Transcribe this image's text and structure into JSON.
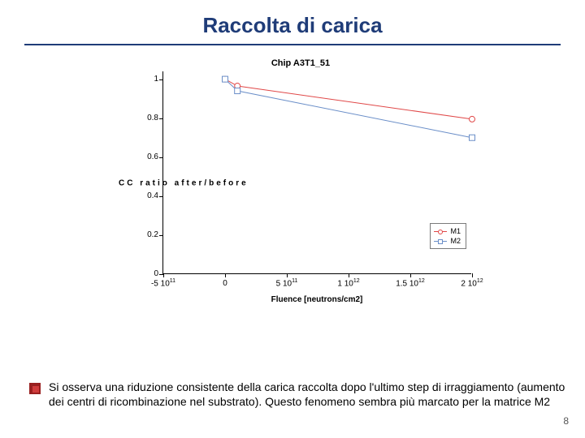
{
  "title": "Raccolta di carica",
  "chart": {
    "type": "line",
    "title": "Chip A3T1_51",
    "xlabel": "Fluence [neutrons/cm2]",
    "ylabel_display": "CC ratio after/before",
    "ylim": [
      0,
      1.04
    ],
    "yticks": [
      0,
      0.2,
      0.4,
      0.6,
      0.8,
      1
    ],
    "xlim": [
      -500000000000.0,
      2000000000000.0
    ],
    "xticks": [
      -500000000000.0,
      0,
      500000000000.0,
      1000000000000.0,
      1500000000000.0,
      2000000000000.0
    ],
    "xtick_labels": [
      "-5 10<sup>11</sup>",
      "0",
      "5 10<sup>11</sup>",
      "1 10<sup>12</sup>",
      "1.5 10<sup>12</sup>",
      "2 10<sup>12</sup>"
    ],
    "series": [
      {
        "name": "M1",
        "color": "#e04848",
        "marker": "circle",
        "data": [
          {
            "x": 0,
            "y": 1.0
          },
          {
            "x": 100000000000.0,
            "y": 0.965
          },
          {
            "x": 2000000000000.0,
            "y": 0.795
          }
        ]
      },
      {
        "name": "M2",
        "color": "#6a8ec8",
        "marker": "square",
        "data": [
          {
            "x": 0,
            "y": 1.0
          },
          {
            "x": 100000000000.0,
            "y": 0.94
          },
          {
            "x": 2000000000000.0,
            "y": 0.7
          }
        ]
      }
    ],
    "marker_size": 7,
    "line_width": 1,
    "axis_color": "#000000",
    "background_color": "#ffffff"
  },
  "body_text": "Si osserva una riduzione consistente della carica raccolta dopo l'ultimo step di irraggiamento (aumento dei centri di ricombinazione nel substrato). Questo fenomeno sembra più marcato per la matrice M2",
  "page_number": "8",
  "accent_color": "#1f3c78"
}
